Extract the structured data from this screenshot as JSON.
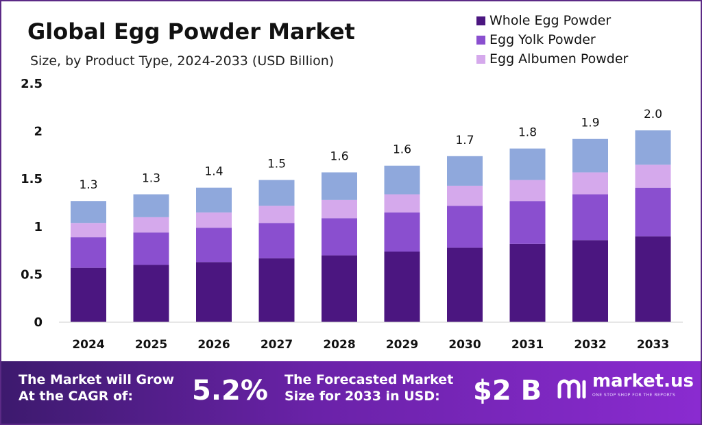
{
  "chart_data": {
    "type": "bar",
    "stacked": true,
    "title": "Global Egg Powder Market",
    "subtitle": "Size, by Product Type, 2024-2033 (USD Billion)",
    "categories": [
      "2024",
      "2025",
      "2026",
      "2027",
      "2028",
      "2029",
      "2030",
      "2031",
      "2032",
      "2033"
    ],
    "series": [
      {
        "name": "Whole Egg Powder",
        "color": "#4b1680",
        "values": [
          0.57,
          0.6,
          0.63,
          0.67,
          0.7,
          0.74,
          0.78,
          0.82,
          0.86,
          0.9
        ]
      },
      {
        "name": "Egg Yolk Powder",
        "color": "#8a4fcf",
        "values": [
          0.32,
          0.34,
          0.36,
          0.37,
          0.39,
          0.41,
          0.44,
          0.45,
          0.48,
          0.51
        ]
      },
      {
        "name": "Egg Albumen Powder",
        "color": "#d5a9ec",
        "values": [
          0.15,
          0.16,
          0.16,
          0.18,
          0.19,
          0.19,
          0.21,
          0.22,
          0.23,
          0.24
        ]
      },
      {
        "name": "",
        "color": "#8fa8dc",
        "values": [
          0.23,
          0.24,
          0.26,
          0.27,
          0.29,
          0.3,
          0.31,
          0.33,
          0.35,
          0.36
        ]
      }
    ],
    "totals_labels": [
      "1.3",
      "1.3",
      "1.4",
      "1.5",
      "1.6",
      "1.6",
      "1.7",
      "1.8",
      "1.9",
      "2.0"
    ],
    "y_ticks": [
      "0",
      "0.5",
      "1",
      "1.5",
      "2",
      "2.5"
    ],
    "ylim": [
      0,
      2.5
    ],
    "grid": false,
    "legend_position": "top-right"
  },
  "footer": {
    "cagr_label_line1": "The Market will Grow",
    "cagr_label_line2": "At the CAGR of:",
    "cagr_value": "5.2%",
    "forecast_label_line1": "The Forecasted Market",
    "forecast_label_line2": "Size for 2033 in USD:",
    "forecast_value": "$2 B",
    "logo_text": "market.us",
    "logo_tagline": "ONE STOP SHOP FOR THE REPORTS",
    "logo_icon": "market-us-logo-icon"
  }
}
